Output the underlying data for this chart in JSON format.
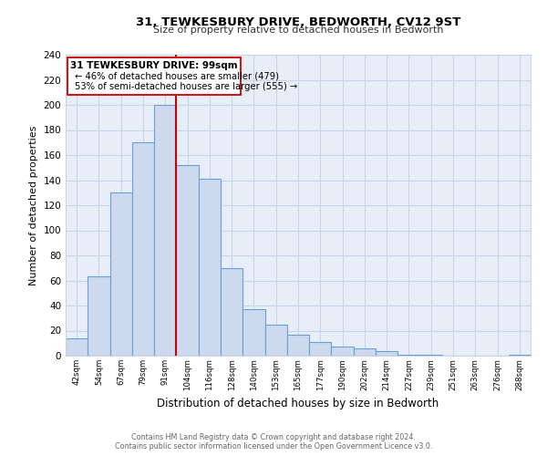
{
  "title": "31, TEWKESBURY DRIVE, BEDWORTH, CV12 9ST",
  "subtitle": "Size of property relative to detached houses in Bedworth",
  "xlabel": "Distribution of detached houses by size in Bedworth",
  "ylabel": "Number of detached properties",
  "bin_labels": [
    "42sqm",
    "54sqm",
    "67sqm",
    "79sqm",
    "91sqm",
    "104sqm",
    "116sqm",
    "128sqm",
    "140sqm",
    "153sqm",
    "165sqm",
    "177sqm",
    "190sqm",
    "202sqm",
    "214sqm",
    "227sqm",
    "239sqm",
    "251sqm",
    "263sqm",
    "276sqm",
    "288sqm"
  ],
  "bar_heights": [
    14,
    63,
    130,
    170,
    200,
    152,
    141,
    70,
    37,
    25,
    17,
    11,
    7,
    6,
    4,
    1,
    1,
    0,
    0,
    0,
    1
  ],
  "bar_color": "#ccd9ee",
  "bar_edge_color": "#6a9fd8",
  "marker_line_color": "#cc0000",
  "annotation_box_edge": "#cc0000",
  "annotation_title": "31 TEWKESBURY DRIVE: 99sqm",
  "annotation_line1": "← 46% of detached houses are smaller (479)",
  "annotation_line2": "53% of semi-detached houses are larger (555) →",
  "ylim": [
    0,
    240
  ],
  "yticks": [
    0,
    20,
    40,
    60,
    80,
    100,
    120,
    140,
    160,
    180,
    200,
    220,
    240
  ],
  "footer1": "Contains HM Land Registry data © Crown copyright and database right 2024.",
  "footer2": "Contains public sector information licensed under the Open Government Licence v3.0.",
  "background_color": "#ffffff",
  "plot_bg_color": "#e8eef8",
  "grid_color": "#c8d4e8"
}
